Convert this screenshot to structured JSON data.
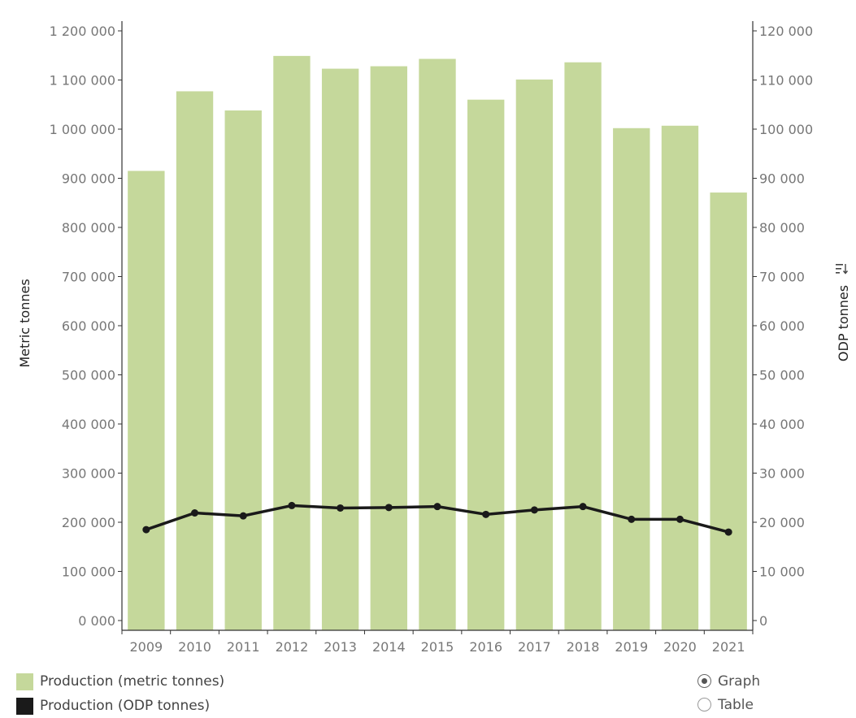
{
  "chart_data": {
    "type": "bar",
    "categories": [
      "2009",
      "2010",
      "2011",
      "2012",
      "2013",
      "2014",
      "2015",
      "2016",
      "2017",
      "2018",
      "2019",
      "2020",
      "2021"
    ],
    "series": [
      {
        "name": "Production (metric tonnes)",
        "type": "bar",
        "axis": "left",
        "values": [
          915000,
          1077000,
          1038000,
          1149000,
          1123000,
          1128000,
          1143000,
          1060000,
          1101000,
          1136000,
          1002000,
          1007000,
          871000
        ]
      },
      {
        "name": "Production (ODP tonnes)",
        "type": "line",
        "axis": "right",
        "values": [
          18500,
          21900,
          21300,
          23400,
          22900,
          23000,
          23200,
          21600,
          22500,
          23200,
          20600,
          20600,
          18000
        ]
      }
    ],
    "ylabel": "Metric tonnes",
    "y2label": "ODP tonnes",
    "ylim": [
      0,
      1200000
    ],
    "y2lim": [
      0,
      120000
    ],
    "yticks": [
      "0 000",
      "100 000",
      "200 000",
      "300 000",
      "400 000",
      "500 000",
      "600 000",
      "700 000",
      "800 000",
      "900 000",
      "1 000 000",
      "1 100 000",
      "1 200 000"
    ],
    "y2ticks": [
      "0",
      "10 000",
      "20 000",
      "30 000",
      "40 000",
      "50 000",
      "60 000",
      "70 000",
      "80 000",
      "90 000",
      "100 000",
      "110 000",
      "120 000"
    ],
    "grid": false,
    "legend_position": "bottom-left"
  },
  "colors": {
    "bar": "#c5d89b",
    "line": "#1a1a1a"
  },
  "legend": {
    "items": [
      {
        "label": "Production (metric tonnes)",
        "color": "#c5d89b"
      },
      {
        "label": "Production (ODP tonnes)",
        "color": "#1a1a1a"
      }
    ]
  },
  "view_toggle": {
    "options": [
      {
        "label": "Graph",
        "selected": true
      },
      {
        "label": "Table",
        "selected": false
      }
    ]
  },
  "icons": {
    "sort": "sort-icon"
  }
}
